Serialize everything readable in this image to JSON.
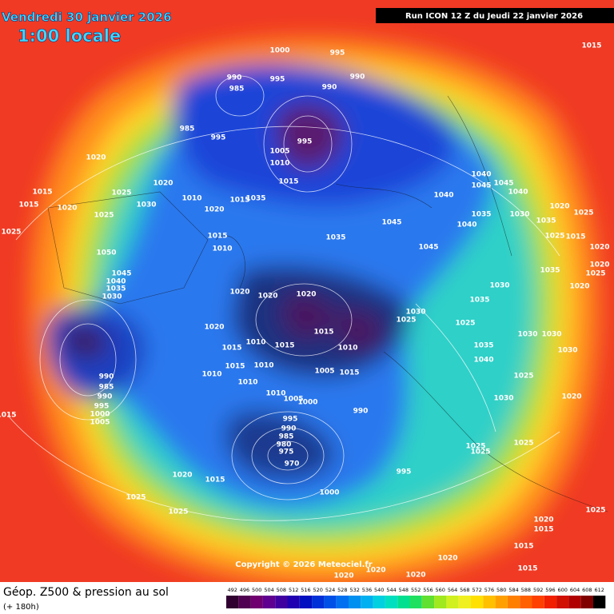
{
  "header": {
    "date": "Vendredi 30 janvier 2026",
    "time": "1:00 locale",
    "run": "Run ICON 12 Z du Jeudi 22 janvier 2026"
  },
  "map": {
    "isobar_labels": [
      1000,
      995,
      990,
      985,
      995,
      990,
      990,
      985,
      995,
      995,
      1005,
      1010,
      1015,
      1020,
      1020,
      1015,
      1025,
      1015,
      1020,
      1025,
      1030,
      1010,
      1020,
      1015,
      1035,
      1025,
      1015,
      1010,
      1050,
      1045,
      1040,
      1035,
      1030,
      1020,
      1020,
      1020,
      1020,
      1015,
      1010,
      1015,
      1015,
      1010,
      1030,
      1025,
      1005,
      1015,
      1010,
      1015,
      1010,
      1010,
      1010,
      1005,
      1000,
      990,
      985,
      990,
      995,
      1000,
      1005,
      1015,
      995,
      990,
      985,
      980,
      975,
      970,
      990,
      995,
      1000,
      1020,
      1015,
      1025,
      1025,
      1035,
      1045,
      1045,
      1040,
      1045,
      1045,
      1040,
      1040,
      1040,
      1035,
      1030,
      1035,
      1020,
      1025,
      1025,
      1015,
      1020,
      1020,
      1035,
      1020,
      1025,
      1025,
      1035,
      1040,
      1025,
      1030,
      1020,
      1025,
      1025,
      1025,
      1020,
      1015,
      1025,
      1015,
      1015,
      1020,
      1020,
      1020,
      1020,
      1035,
      1030,
      1030,
      1030,
      1030,
      1015
    ],
    "copyright": "Copyright © 2026 Meteociel.fr"
  },
  "footer": {
    "title": "Géop. Z500 & pression au sol",
    "lead": "(+ 180h)",
    "legend": [
      492,
      496,
      500,
      504,
      508,
      512,
      516,
      520,
      524,
      528,
      532,
      536,
      540,
      544,
      548,
      552,
      556,
      560,
      564,
      568,
      572,
      576,
      580,
      584,
      588,
      592,
      596,
      600,
      604,
      608,
      612
    ]
  }
}
